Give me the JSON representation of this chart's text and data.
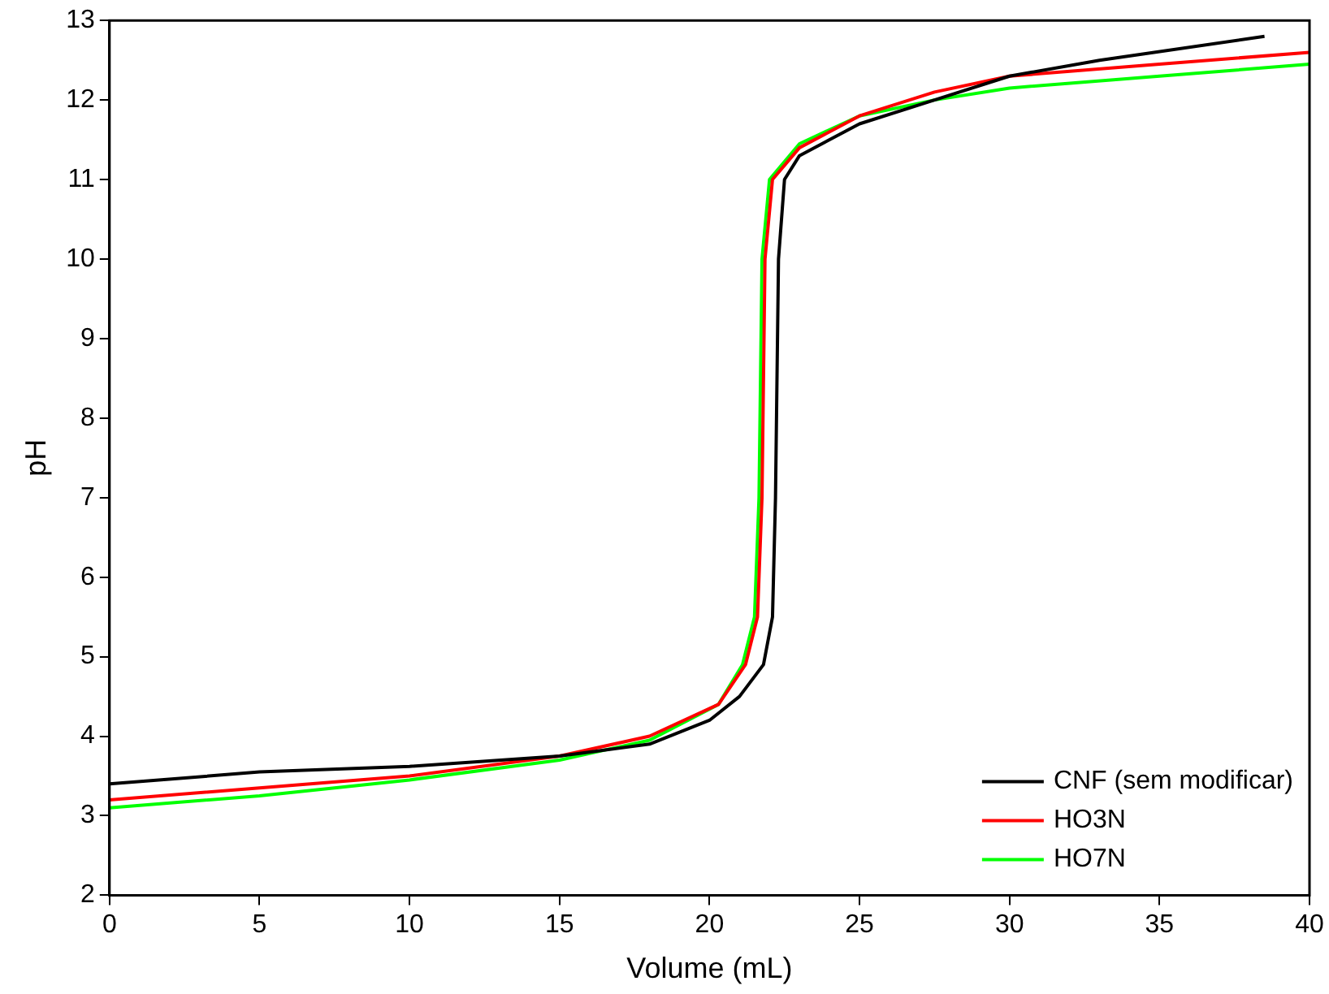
{
  "chart_data": {
    "type": "line",
    "xlabel": "Volume (mL)",
    "ylabel": "pH",
    "xlim": [
      0,
      40
    ],
    "xticks": [
      0,
      5,
      10,
      15,
      20,
      25,
      30,
      35,
      40
    ],
    "ylim": [
      2,
      13
    ],
    "yticks": [
      2,
      3,
      4,
      5,
      6,
      7,
      8,
      9,
      10,
      11,
      12,
      13
    ],
    "grid": false,
    "legend": "bottom right",
    "marker": "none",
    "line_style": "solid",
    "series": [
      {
        "name": "CNF (sem modificar)",
        "color": "#000000",
        "x": [
          0,
          5,
          10,
          15,
          18,
          20,
          21,
          21.8,
          22.1,
          22.2,
          22.3,
          22.5,
          23,
          25,
          27.5,
          30,
          33,
          38.5
        ],
        "values": [
          3.4,
          3.55,
          3.62,
          3.75,
          3.9,
          4.2,
          4.5,
          4.9,
          5.5,
          7,
          10,
          11,
          11.3,
          11.7,
          12.0,
          12.3,
          12.5,
          12.8
        ]
      },
      {
        "name": "HO3N",
        "color": "#ff0000",
        "x": [
          0,
          5,
          10,
          15,
          18,
          20.3,
          21.2,
          21.6,
          21.75,
          21.85,
          22.1,
          23,
          25,
          27.5,
          30,
          35,
          40
        ],
        "values": [
          3.2,
          3.35,
          3.5,
          3.75,
          4.0,
          4.4,
          4.9,
          5.5,
          7,
          10,
          11,
          11.4,
          11.8,
          12.1,
          12.3,
          12.45,
          12.6
        ]
      },
      {
        "name": "HO7N",
        "color": "#00ff00",
        "x": [
          0,
          5,
          10,
          15,
          18,
          20.3,
          21.1,
          21.5,
          21.65,
          21.75,
          22,
          23,
          25,
          27.5,
          30,
          35,
          40
        ],
        "values": [
          3.1,
          3.25,
          3.45,
          3.7,
          3.95,
          4.4,
          4.9,
          5.5,
          7,
          10,
          11,
          11.45,
          11.8,
          12.0,
          12.15,
          12.3,
          12.45
        ]
      }
    ]
  }
}
